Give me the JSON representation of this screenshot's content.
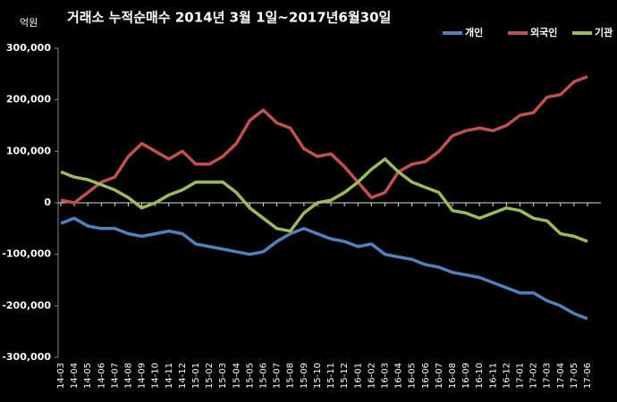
{
  "chart_data": {
    "type": "line",
    "title": "거래소 누적순매수 2014년 3월 1일~2017년6월30일",
    "y_axis_label": "억원",
    "categories": [
      "14-03",
      "14-04",
      "14-05",
      "14-06",
      "14-07",
      "14-08",
      "14-09",
      "14-10",
      "14-11",
      "14-12",
      "15-01",
      "15-02",
      "15-03",
      "15-04",
      "15-05",
      "15-06",
      "15-07",
      "15-08",
      "15-09",
      "15-10",
      "15-11",
      "15-12",
      "16-01",
      "16-02",
      "16-03",
      "16-04",
      "16-05",
      "16-06",
      "16-07",
      "16-08",
      "16-09",
      "16-10",
      "16-11",
      "16-12",
      "17-01",
      "17-02",
      "17-03",
      "17-04",
      "17-05",
      "17-06"
    ],
    "series": [
      {
        "name": "개인",
        "color": "#4f81bd",
        "values": [
          -40000,
          -30000,
          -45000,
          -50000,
          -50000,
          -60000,
          -65000,
          -60000,
          -55000,
          -60000,
          -80000,
          -85000,
          -90000,
          -95000,
          -100000,
          -95000,
          -75000,
          -60000,
          -50000,
          -60000,
          -70000,
          -75000,
          -85000,
          -80000,
          -100000,
          -105000,
          -110000,
          -120000,
          -125000,
          -135000,
          -140000,
          -145000,
          -155000,
          -165000,
          -175000,
          -175000,
          -190000,
          -200000,
          -215000,
          -225000
        ]
      },
      {
        "name": "외국인",
        "color": "#c0504d",
        "values": [
          5000,
          0,
          20000,
          40000,
          50000,
          90000,
          115000,
          100000,
          85000,
          100000,
          75000,
          75000,
          90000,
          115000,
          160000,
          180000,
          155000,
          145000,
          105000,
          90000,
          95000,
          70000,
          40000,
          10000,
          20000,
          60000,
          75000,
          80000,
          100000,
          130000,
          140000,
          145000,
          140000,
          150000,
          170000,
          175000,
          205000,
          210000,
          235000,
          245000
        ]
      },
      {
        "name": "기관",
        "color": "#9bbb59",
        "values": [
          60000,
          50000,
          45000,
          35000,
          25000,
          10000,
          -10000,
          0,
          15000,
          25000,
          40000,
          40000,
          40000,
          20000,
          -10000,
          -30000,
          -50000,
          -55000,
          -20000,
          0,
          5000,
          20000,
          40000,
          65000,
          85000,
          60000,
          40000,
          30000,
          20000,
          -15000,
          -20000,
          -30000,
          -20000,
          -10000,
          -15000,
          -30000,
          -35000,
          -60000,
          -65000,
          -75000
        ]
      }
    ],
    "ylim": [
      -300000,
      300000
    ],
    "yticks": [
      {
        "value": -300000,
        "label": "-300,000"
      },
      {
        "value": -200000,
        "label": "-200,000"
      },
      {
        "value": -100000,
        "label": "-100,000"
      },
      0,
      {
        "value": 100000,
        "label": "100,000"
      },
      {
        "value": 200000,
        "label": "200,000"
      },
      {
        "value": 300000,
        "label": "300,000"
      }
    ],
    "legend": "top-right"
  }
}
